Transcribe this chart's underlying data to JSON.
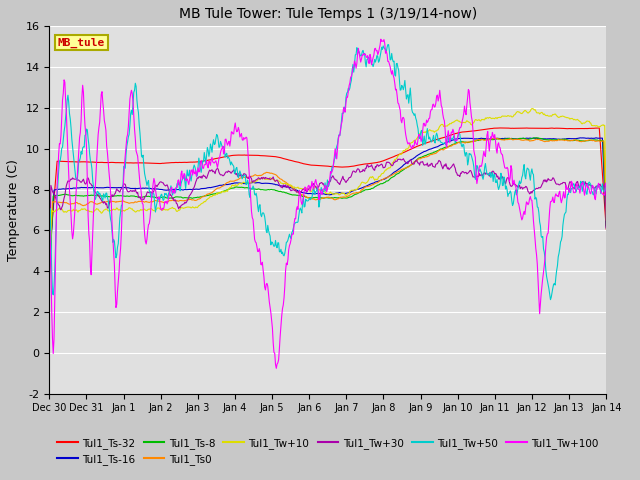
{
  "title": "MB Tule Tower: Tule Temps 1 (3/19/14-now)",
  "ylabel": "Temperature (C)",
  "ylim": [
    -2,
    16
  ],
  "yticks": [
    -2,
    0,
    2,
    4,
    6,
    8,
    10,
    12,
    14,
    16
  ],
  "fig_bg": "#c8c8c8",
  "plot_bg": "#e0e0e0",
  "grid_color": "#ffffff",
  "legend_box_label": "MB_tule",
  "legend_box_facecolor": "#ffff99",
  "legend_box_edgecolor": "#aaaa00",
  "legend_box_textcolor": "#cc0000",
  "series": [
    {
      "label": "Tul1_Ts-32",
      "color": "#ff0000"
    },
    {
      "label": "Tul1_Ts-16",
      "color": "#0000cc"
    },
    {
      "label": "Tul1_Ts-8",
      "color": "#00bb00"
    },
    {
      "label": "Tul1_Ts0",
      "color": "#ff8800"
    },
    {
      "label": "Tul1_Tw+10",
      "color": "#dddd00"
    },
    {
      "label": "Tul1_Tw+30",
      "color": "#aa00aa"
    },
    {
      "label": "Tul1_Tw+50",
      "color": "#00cccc"
    },
    {
      "label": "Tul1_Tw+100",
      "color": "#ff00ff"
    }
  ],
  "x_tick_labels": [
    "Dec 30",
    "Dec 31",
    "Jan 1",
    "Jan 2",
    "Jan 3",
    "Jan 4",
    "Jan 5",
    "Jan 6",
    "Jan 7",
    "Jan 8",
    "Jan 9",
    "Jan 10",
    "Jan 11",
    "Jan 12",
    "Jan 13",
    "Jan 14"
  ],
  "x_tick_pos": [
    0,
    1,
    2,
    3,
    4,
    5,
    6,
    7,
    8,
    9,
    10,
    11,
    12,
    13,
    14,
    15
  ],
  "days": 15
}
